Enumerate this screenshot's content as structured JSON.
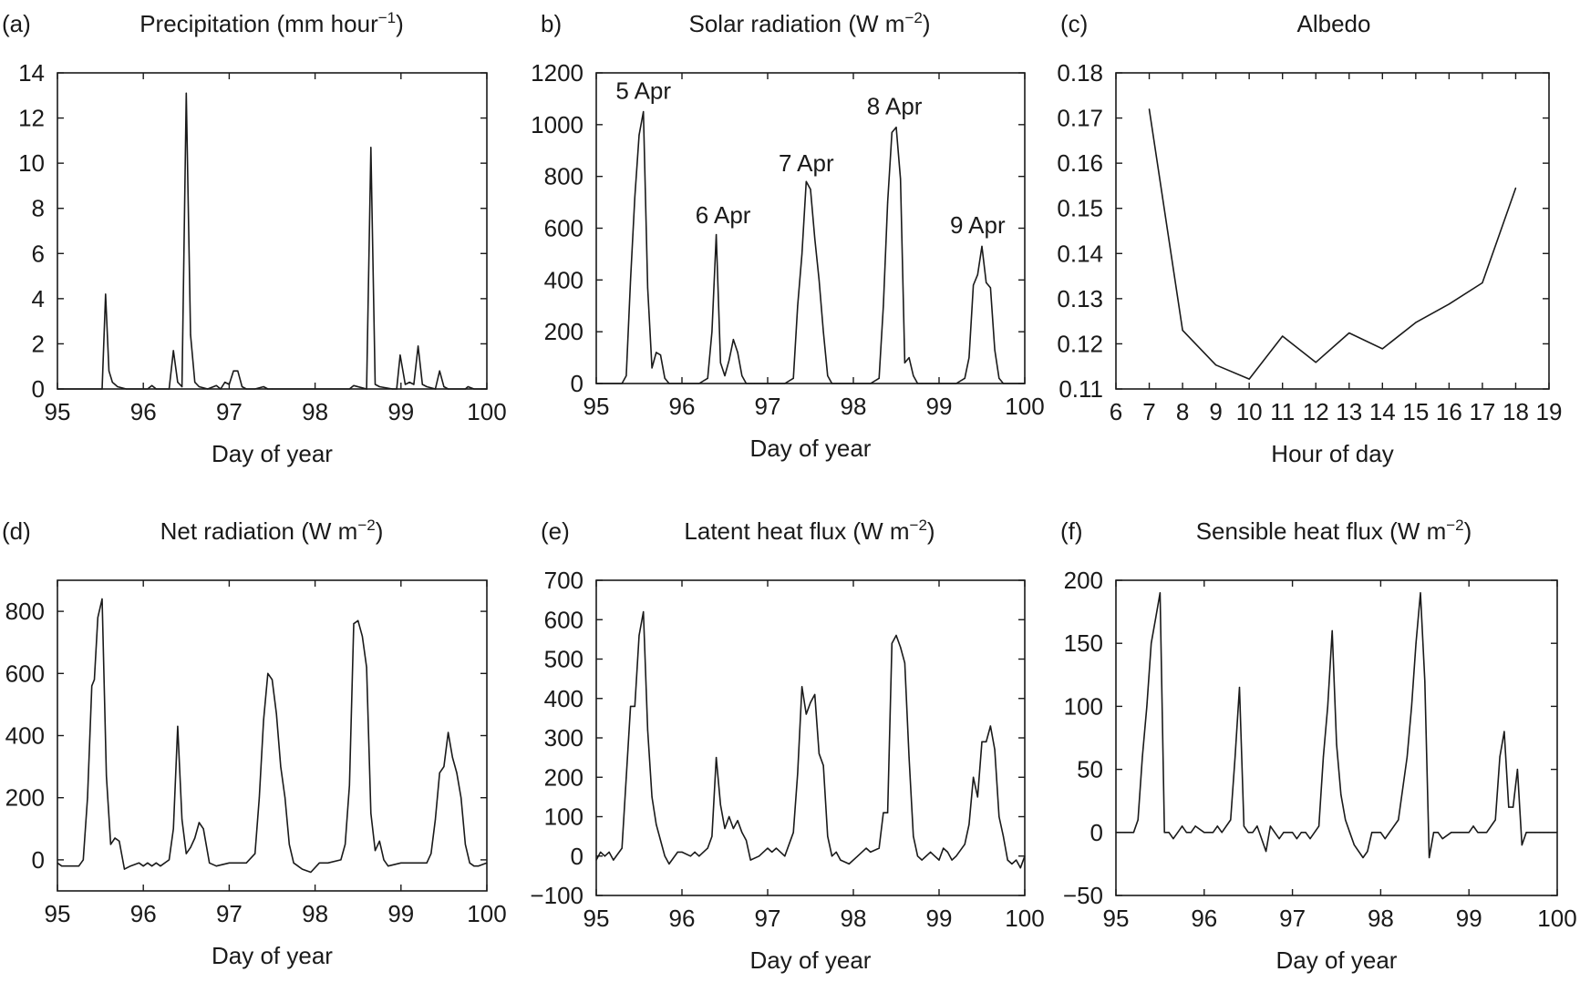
{
  "chart_data": [
    {
      "type": "line",
      "panel_label": "(a)",
      "title": "Precipitation (mm hour",
      "title_sup": "−1",
      "title_end": ")",
      "xlabel": "Day of year",
      "ylabel": "",
      "xlim": [
        95,
        100
      ],
      "ylim": [
        0,
        14
      ],
      "x_ticks": [
        95,
        96,
        97,
        98,
        99,
        100
      ],
      "x_tick_labels": [
        "95",
        "96",
        "97",
        "98",
        "99",
        "100"
      ],
      "y_ticks": [
        0,
        2,
        4,
        6,
        8,
        10,
        12,
        14
      ],
      "y_tick_labels": [
        "0",
        "2",
        "4",
        "6",
        "8",
        "10",
        "12",
        "14"
      ],
      "grid": false,
      "series": [
        {
          "x": [
            95,
            95.52,
            95.56,
            95.6,
            95.64,
            95.7,
            95.8,
            96.05,
            96.1,
            96.15,
            96.3,
            96.35,
            96.4,
            96.45,
            96.5,
            96.55,
            96.6,
            96.65,
            96.75,
            96.85,
            96.9,
            96.95,
            97.0,
            97.05,
            97.1,
            97.15,
            97.2,
            97.3,
            97.4,
            97.45,
            97.5,
            98.4,
            98.45,
            98.6,
            98.65,
            98.7,
            98.75,
            98.9,
            98.95,
            98.99,
            99.05,
            99.1,
            99.15,
            99.2,
            99.25,
            99.3,
            99.4,
            99.45,
            99.5,
            99.55,
            99.75,
            99.78,
            99.85,
            100
          ],
          "y": [
            0,
            0,
            4.2,
            0.8,
            0.3,
            0.1,
            0,
            0,
            0.15,
            0,
            0,
            1.7,
            0.3,
            0.1,
            13.1,
            2.4,
            0.3,
            0.1,
            0,
            0.15,
            0,
            0.3,
            0.2,
            0.8,
            0.8,
            0.1,
            0,
            0,
            0.1,
            0,
            0,
            0,
            0.15,
            0,
            10.7,
            0.2,
            0.1,
            0,
            0,
            1.5,
            0.2,
            0.3,
            0.2,
            1.9,
            0.2,
            0.1,
            0,
            0.8,
            0.1,
            0,
            0,
            0.1,
            0,
            0
          ]
        }
      ]
    },
    {
      "type": "line",
      "panel_label": "b)",
      "title": "Solar radiation (W m",
      "title_sup": "−2",
      "title_end": ")",
      "xlabel": "Day of year",
      "ylabel": "",
      "xlim": [
        95,
        100
      ],
      "ylim": [
        0,
        1200
      ],
      "x_ticks": [
        95,
        96,
        97,
        98,
        99,
        100
      ],
      "x_tick_labels": [
        "95",
        "96",
        "97",
        "98",
        "99",
        "100"
      ],
      "y_ticks": [
        0,
        200,
        400,
        600,
        800,
        1000,
        1200
      ],
      "y_tick_labels": [
        "0",
        "200",
        "400",
        "600",
        "800",
        "1000",
        "1200"
      ],
      "grid": false,
      "annotations": [
        {
          "text": "5 Apr",
          "x": 95.55,
          "y": 1100
        },
        {
          "text": "6 Apr",
          "x": 96.48,
          "y": 620
        },
        {
          "text": "7 Apr",
          "x": 97.45,
          "y": 820
        },
        {
          "text": "8 Apr",
          "x": 98.48,
          "y": 1040
        },
        {
          "text": "9 Apr",
          "x": 99.45,
          "y": 580
        }
      ],
      "series": [
        {
          "x": [
            95,
            95.3,
            95.35,
            95.4,
            95.45,
            95.5,
            95.55,
            95.6,
            95.65,
            95.7,
            95.75,
            95.8,
            95.85,
            96.2,
            96.3,
            96.35,
            96.4,
            96.45,
            96.5,
            96.55,
            96.6,
            96.65,
            96.7,
            96.75,
            96.8,
            96.85,
            97.2,
            97.3,
            97.35,
            97.4,
            97.45,
            97.5,
            97.55,
            97.6,
            97.65,
            97.7,
            97.75,
            97.8,
            97.85,
            98.2,
            98.3,
            98.35,
            98.4,
            98.45,
            98.5,
            98.55,
            98.6,
            98.65,
            98.7,
            98.75,
            98.8,
            98.85,
            99.2,
            99.3,
            99.35,
            99.4,
            99.45,
            99.5,
            99.55,
            99.6,
            99.65,
            99.7,
            99.75,
            99.8,
            100
          ],
          "y": [
            0,
            0,
            30,
            400,
            720,
            960,
            1050,
            370,
            60,
            120,
            110,
            20,
            0,
            0,
            20,
            200,
            575,
            80,
            30,
            90,
            170,
            120,
            30,
            0,
            0,
            0,
            0,
            20,
            300,
            500,
            780,
            750,
            560,
            400,
            200,
            30,
            0,
            0,
            0,
            0,
            20,
            300,
            700,
            970,
            990,
            790,
            80,
            100,
            30,
            0,
            0,
            0,
            0,
            20,
            100,
            380,
            420,
            530,
            390,
            370,
            130,
            20,
            0,
            0,
            0
          ]
        }
      ]
    },
    {
      "type": "line",
      "panel_label": "(c)",
      "title": "Albedo",
      "title_sup": "",
      "title_end": "",
      "xlabel": "Hour of day",
      "ylabel": "",
      "xlim": [
        6,
        19
      ],
      "ylim": [
        0.11,
        0.18
      ],
      "x_ticks": [
        6,
        7,
        8,
        9,
        10,
        11,
        12,
        13,
        14,
        15,
        16,
        17,
        18,
        19
      ],
      "x_tick_labels": [
        "6",
        "7",
        "8",
        "9",
        "10",
        "11",
        "12",
        "13",
        "14",
        "15",
        "16",
        "17",
        "18",
        "19"
      ],
      "y_ticks": [
        0.11,
        0.12,
        0.13,
        0.14,
        0.15,
        0.16,
        0.17,
        0.18
      ],
      "y_tick_labels": [
        "0.11",
        "0.12",
        "0.13",
        "0.14",
        "0.15",
        "0.16",
        "0.17",
        "0.18"
      ],
      "grid": false,
      "series": [
        {
          "x": [
            7,
            8,
            9,
            10,
            11,
            12,
            13,
            14,
            15,
            16,
            17,
            18
          ],
          "y": [
            0.172,
            0.123,
            0.1153,
            0.1122,
            0.1217,
            0.1159,
            0.1224,
            0.1189,
            0.1247,
            0.1288,
            0.1335,
            0.1545
          ]
        }
      ]
    },
    {
      "type": "line",
      "panel_label": "(d)",
      "title": "Net radiation (W m",
      "title_sup": "−2",
      "title_end": ")",
      "xlabel": "Day of year",
      "ylabel": "",
      "xlim": [
        95,
        100
      ],
      "ylim": [
        -100,
        900
      ],
      "x_ticks": [
        95,
        96,
        97,
        98,
        99,
        100
      ],
      "x_tick_labels": [
        "95",
        "96",
        "97",
        "98",
        "99",
        "100"
      ],
      "y_ticks": [
        0,
        200,
        400,
        600,
        800
      ],
      "y_tick_labels": [
        "0",
        "200",
        "400",
        "600",
        "800"
      ],
      "grid": false,
      "series": [
        {
          "x": [
            95,
            95.05,
            95.25,
            95.3,
            95.35,
            95.4,
            95.43,
            95.47,
            95.52,
            95.57,
            95.62,
            95.67,
            95.72,
            95.78,
            95.85,
            95.95,
            96.0,
            96.05,
            96.1,
            96.15,
            96.2,
            96.3,
            96.35,
            96.4,
            96.45,
            96.5,
            96.55,
            96.6,
            96.65,
            96.7,
            96.77,
            96.85,
            97.0,
            97.2,
            97.3,
            97.35,
            97.4,
            97.45,
            97.5,
            97.55,
            97.6,
            97.65,
            97.7,
            97.75,
            97.8,
            97.85,
            97.95,
            98.05,
            98.15,
            98.3,
            98.35,
            98.4,
            98.45,
            98.5,
            98.55,
            98.6,
            98.65,
            98.7,
            98.75,
            98.8,
            98.85,
            99.0,
            99.2,
            99.3,
            99.35,
            99.4,
            99.45,
            99.5,
            99.55,
            99.6,
            99.65,
            99.7,
            99.75,
            99.8,
            99.85,
            99.9,
            100
          ],
          "y": [
            -10,
            -20,
            -20,
            0,
            200,
            560,
            580,
            780,
            840,
            270,
            50,
            70,
            60,
            -30,
            -20,
            -10,
            -20,
            -10,
            -20,
            -10,
            -20,
            0,
            100,
            430,
            130,
            20,
            40,
            70,
            120,
            100,
            -10,
            -20,
            -10,
            -10,
            20,
            200,
            450,
            600,
            580,
            470,
            300,
            200,
            50,
            -10,
            -20,
            -30,
            -40,
            -10,
            -10,
            0,
            50,
            240,
            760,
            770,
            720,
            620,
            150,
            30,
            60,
            0,
            -20,
            -10,
            -10,
            -10,
            20,
            130,
            280,
            300,
            410,
            330,
            280,
            200,
            50,
            -10,
            -20,
            -20,
            -10
          ]
        }
      ]
    },
    {
      "type": "line",
      "panel_label": "(e)",
      "title": "Latent heat flux (W m",
      "title_sup": "−2",
      "title_end": ")",
      "xlabel": "Day of year",
      "ylabel": "",
      "xlim": [
        95,
        100
      ],
      "ylim": [
        -100,
        700
      ],
      "x_ticks": [
        95,
        96,
        97,
        98,
        99,
        100
      ],
      "x_tick_labels": [
        "95",
        "96",
        "97",
        "98",
        "99",
        "100"
      ],
      "y_ticks": [
        -100,
        0,
        100,
        200,
        300,
        400,
        500,
        600,
        700
      ],
      "y_tick_labels": [
        "−100",
        "0",
        "100",
        "200",
        "300",
        "400",
        "500",
        "600",
        "700"
      ],
      "grid": false,
      "series": [
        {
          "x": [
            95,
            95.05,
            95.1,
            95.15,
            95.2,
            95.3,
            95.35,
            95.4,
            95.45,
            95.5,
            95.55,
            95.6,
            95.65,
            95.7,
            95.75,
            95.8,
            95.85,
            95.95,
            96.0,
            96.1,
            96.15,
            96.2,
            96.3,
            96.35,
            96.4,
            96.45,
            96.5,
            96.55,
            96.6,
            96.65,
            96.7,
            96.75,
            96.8,
            96.9,
            97.0,
            97.05,
            97.1,
            97.2,
            97.3,
            97.35,
            97.4,
            97.45,
            97.5,
            97.55,
            97.6,
            97.65,
            97.7,
            97.75,
            97.8,
            97.85,
            97.95,
            98.05,
            98.15,
            98.2,
            98.3,
            98.35,
            98.4,
            98.45,
            98.5,
            98.55,
            98.6,
            98.65,
            98.7,
            98.75,
            98.8,
            98.9,
            98.95,
            99.0,
            99.05,
            99.1,
            99.15,
            99.2,
            99.3,
            99.35,
            99.4,
            99.45,
            99.5,
            99.55,
            99.6,
            99.65,
            99.7,
            99.75,
            99.8,
            99.85,
            99.9,
            99.95,
            100
          ],
          "y": [
            -10,
            10,
            0,
            10,
            -10,
            20,
            200,
            380,
            380,
            560,
            620,
            320,
            150,
            80,
            40,
            0,
            -20,
            10,
            10,
            0,
            10,
            0,
            20,
            50,
            250,
            130,
            70,
            100,
            70,
            90,
            60,
            40,
            -10,
            0,
            20,
            10,
            20,
            0,
            60,
            210,
            430,
            360,
            390,
            410,
            260,
            230,
            50,
            0,
            10,
            -10,
            -20,
            0,
            20,
            10,
            20,
            110,
            110,
            540,
            560,
            530,
            490,
            250,
            50,
            0,
            -10,
            10,
            0,
            -10,
            20,
            10,
            -10,
            0,
            30,
            80,
            200,
            150,
            290,
            290,
            330,
            270,
            100,
            50,
            -10,
            -20,
            -10,
            -30,
            0
          ]
        }
      ]
    },
    {
      "type": "line",
      "panel_label": "(f)",
      "title": "Sensible heat flux (W m",
      "title_sup": "−2",
      "title_end": ")",
      "xlabel": "Day of year",
      "ylabel": "",
      "xlim": [
        95,
        100
      ],
      "ylim": [
        -50,
        200
      ],
      "x_ticks": [
        95,
        96,
        97,
        98,
        99,
        100
      ],
      "x_tick_labels": [
        "95",
        "96",
        "97",
        "98",
        "99",
        "100"
      ],
      "y_ticks": [
        -50,
        0,
        50,
        100,
        150,
        200
      ],
      "y_tick_labels": [
        "−50",
        "0",
        "50",
        "100",
        "150",
        "200"
      ],
      "grid": false,
      "series": [
        {
          "x": [
            95,
            95.05,
            95.1,
            95.2,
            95.25,
            95.3,
            95.35,
            95.4,
            95.45,
            95.5,
            95.55,
            95.6,
            95.65,
            95.7,
            95.75,
            95.8,
            95.85,
            95.9,
            96.0,
            96.1,
            96.15,
            96.2,
            96.3,
            96.35,
            96.4,
            96.45,
            96.5,
            96.55,
            96.6,
            96.7,
            96.75,
            96.8,
            96.85,
            96.9,
            97.0,
            97.05,
            97.1,
            97.15,
            97.2,
            97.3,
            97.35,
            97.4,
            97.45,
            97.5,
            97.55,
            97.6,
            97.65,
            97.7,
            97.8,
            97.85,
            97.9,
            98.0,
            98.05,
            98.15,
            98.2,
            98.3,
            98.35,
            98.4,
            98.45,
            98.5,
            98.55,
            98.6,
            98.65,
            98.7,
            98.8,
            98.9,
            99.0,
            99.05,
            99.1,
            99.2,
            99.3,
            99.35,
            99.4,
            99.45,
            99.5,
            99.55,
            99.6,
            99.65,
            99.7,
            99.75,
            99.8,
            99.85,
            99.9,
            99.95,
            100
          ],
          "y": [
            0,
            0,
            0,
            0,
            10,
            60,
            100,
            150,
            170,
            190,
            0,
            0,
            -5,
            0,
            5,
            0,
            0,
            5,
            0,
            0,
            5,
            0,
            10,
            60,
            115,
            5,
            0,
            0,
            5,
            -15,
            5,
            0,
            -5,
            0,
            0,
            -5,
            0,
            0,
            -5,
            5,
            60,
            100,
            160,
            70,
            30,
            10,
            0,
            -10,
            -20,
            -15,
            0,
            0,
            -5,
            5,
            10,
            60,
            100,
            150,
            190,
            120,
            -20,
            0,
            0,
            -5,
            0,
            0,
            0,
            5,
            0,
            0,
            10,
            60,
            80,
            20,
            20,
            50,
            -10,
            0,
            0,
            0,
            0,
            0,
            0,
            0,
            0
          ]
        }
      ]
    }
  ]
}
